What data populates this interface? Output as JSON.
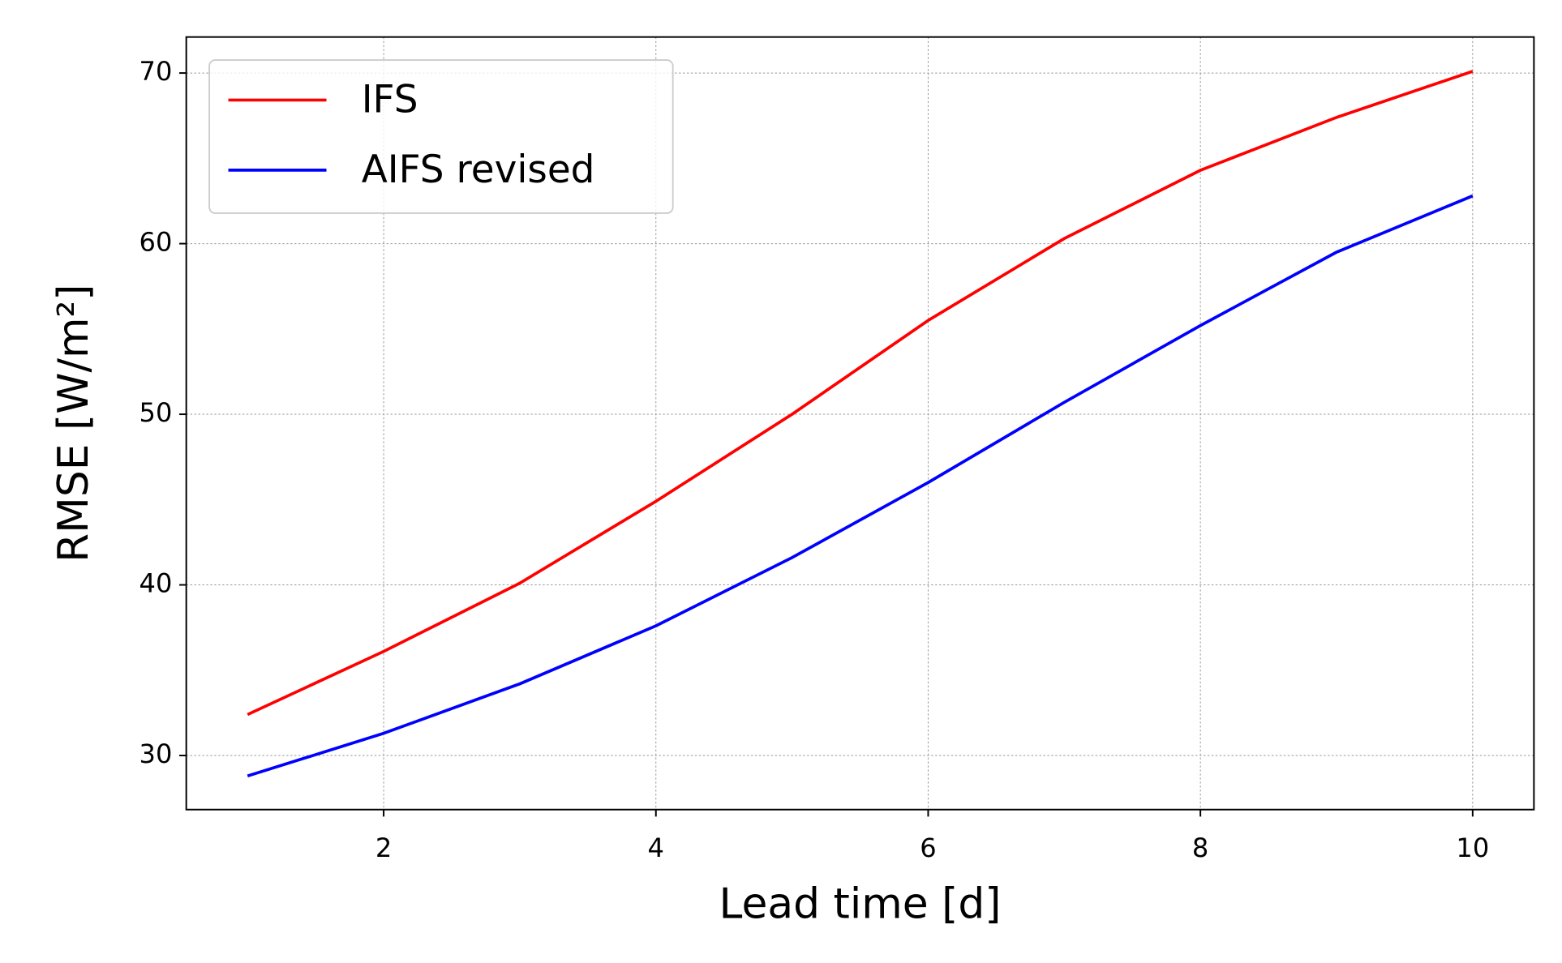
{
  "chart_data": {
    "type": "line",
    "xlabel": "Lead time [d]",
    "ylabel": "RMSE [W/m²]",
    "x": [
      1,
      2,
      3,
      4,
      5,
      6,
      7,
      8,
      9,
      10
    ],
    "series": [
      {
        "name": "IFS",
        "color": "#ff0000",
        "values": [
          32.4,
          36.1,
          40.1,
          44.9,
          50.0,
          55.5,
          60.3,
          64.3,
          67.4,
          70.1
        ]
      },
      {
        "name": "AIFS revised",
        "color": "#0000ff",
        "values": [
          28.8,
          31.3,
          34.2,
          37.6,
          41.6,
          46.0,
          50.7,
          55.2,
          59.5,
          62.8
        ]
      }
    ],
    "xlim": [
      0.55,
      10.45
    ],
    "ylim": [
      26.83,
      72.11
    ],
    "xticks": [
      2,
      4,
      6,
      8,
      10
    ],
    "yticks": [
      30,
      40,
      50,
      60,
      70
    ],
    "grid": true,
    "legend": "upper left"
  }
}
